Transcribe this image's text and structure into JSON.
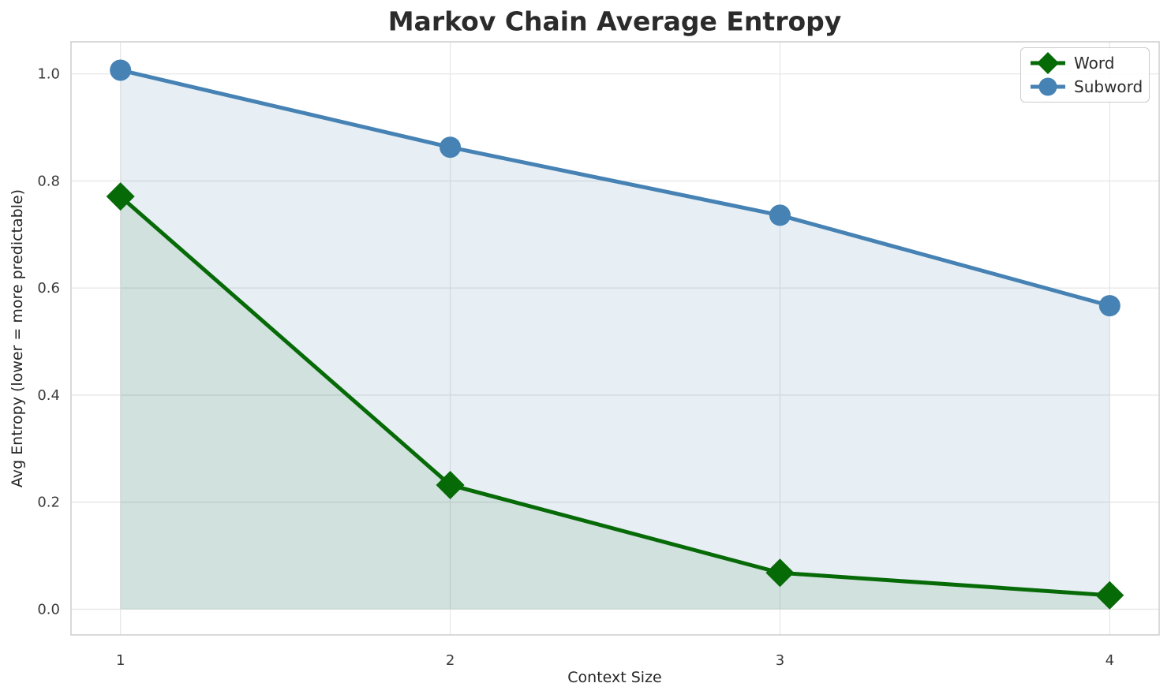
{
  "title": "Markov Chain Average Entropy",
  "chart_data": {
    "type": "line",
    "title": "Markov Chain Average Entropy",
    "xlabel": "Context Size",
    "ylabel": "Avg Entropy (lower = more predictable)",
    "x": [
      1,
      2,
      3,
      4
    ],
    "series": [
      {
        "name": "Word",
        "color": "#066a06",
        "fill": "rgba(0,100,0,0.10)",
        "marker": "diamond",
        "values": [
          0.771,
          0.232,
          0.068,
          0.026
        ]
      },
      {
        "name": "Subword",
        "color": "#4682b4",
        "fill": "rgba(70,130,180,0.13)",
        "marker": "circle",
        "values": [
          1.007,
          0.863,
          0.736,
          0.567
        ]
      }
    ],
    "fill_baseline": 0.0,
    "xlim": [
      0.85,
      4.15
    ],
    "ylim": [
      -0.048,
      1.06
    ],
    "xticks": {
      "values": [
        1,
        2,
        3,
        4
      ],
      "labels": [
        "1",
        "2",
        "3",
        "4"
      ]
    },
    "yticks": {
      "values": [
        0.0,
        0.2,
        0.4,
        0.6,
        0.8,
        1.0
      ],
      "labels": [
        "0.0",
        "0.2",
        "0.4",
        "0.6",
        "0.8",
        "1.0"
      ]
    },
    "grid": true,
    "legend_position": "upper right",
    "legend": [
      "Word",
      "Subword"
    ]
  },
  "style": {
    "background": "#ffffff",
    "grid_color": "#e7e7e7",
    "spine_color": "#d0d0d0",
    "title_color": "#2b2b2b",
    "tick_color": "#3a3a3a",
    "legend_border": "#cccccc",
    "line_width": 5,
    "marker_circle_radius": 13.5,
    "marker_diamond_half": 18
  }
}
